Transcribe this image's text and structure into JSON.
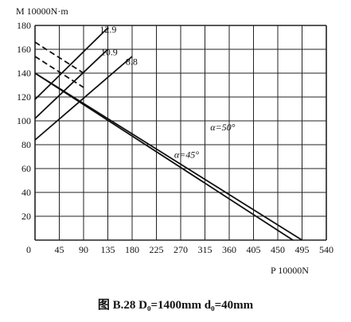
{
  "caption": "图 B.28   D₀=1400mm   d₀=40mm",
  "chart_data": {
    "type": "line",
    "ylabel": "M  10000N·m",
    "xlabel": "P  10000N",
    "xlim": [
      0,
      540
    ],
    "ylim": [
      0,
      180
    ],
    "x_ticks": [
      "0",
      "45",
      "90",
      "135",
      "180",
      "225",
      "270",
      "315",
      "360",
      "405",
      "450",
      "495",
      "540"
    ],
    "y_ticks": [
      "20",
      "40",
      "60",
      "80",
      "100",
      "120",
      "140",
      "160",
      "180"
    ],
    "grid": true,
    "series": [
      {
        "name": "12.9",
        "style": "solid",
        "x": [
          0,
          135
        ],
        "y": [
          118,
          178
        ]
      },
      {
        "name": "10.9",
        "style": "solid",
        "x": [
          0,
          135
        ],
        "y": [
          102,
          160
        ]
      },
      {
        "name": "8.8",
        "style": "solid",
        "x": [
          0,
          180
        ],
        "y": [
          84,
          154
        ]
      },
      {
        "name": "α=50°",
        "style": "solid",
        "x": [
          0,
          495
        ],
        "y": [
          140,
          0
        ]
      },
      {
        "name": "α=45°",
        "style": "solid",
        "x": [
          0,
          478
        ],
        "y": [
          140,
          0
        ]
      },
      {
        "name": "",
        "style": "dashed",
        "x": [
          0,
          90
        ],
        "y": [
          166,
          140
        ]
      },
      {
        "name": "",
        "style": "dashed",
        "x": [
          0,
          90
        ],
        "y": [
          154,
          128
        ]
      }
    ],
    "labels": [
      {
        "text": "12.9",
        "x": 120,
        "y": 174
      },
      {
        "text": "10.9",
        "x": 122,
        "y": 155
      },
      {
        "text": "8.8",
        "x": 168,
        "y": 147
      },
      {
        "text": "α=50°",
        "x": 325,
        "y": 92
      },
      {
        "text": "α=45°",
        "x": 258,
        "y": 69
      }
    ]
  }
}
